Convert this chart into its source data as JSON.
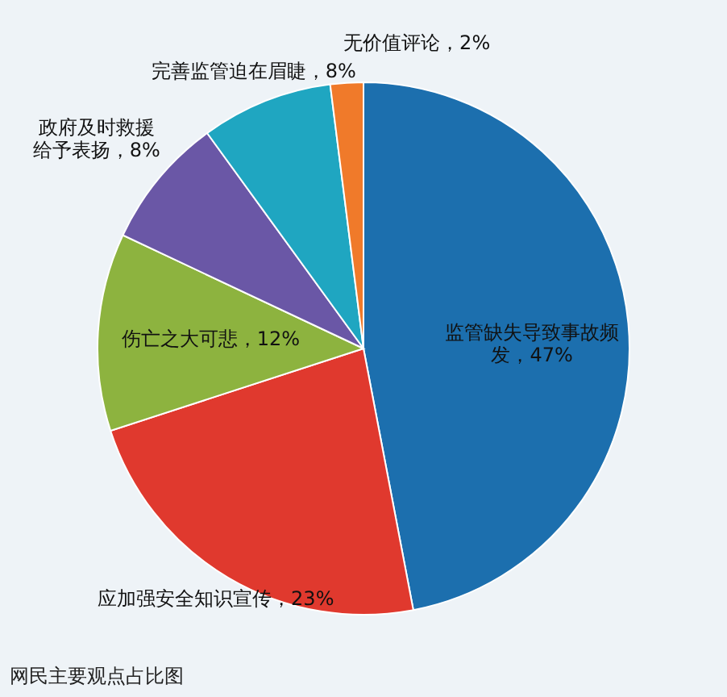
{
  "chart_data": {
    "type": "pie",
    "categories": [
      "监管缺失导致事故频发",
      "应加强安全知识宣传",
      "伤亡之大可悲",
      "政府及时救援给予表扬",
      "完善监管迫在眉睫",
      "无价值评论"
    ],
    "values": [
      47,
      23,
      12,
      8,
      8,
      2
    ],
    "colors": [
      "#1c6fae",
      "#e0392e",
      "#8db33f",
      "#6a57a6",
      "#1fa6c1",
      "#f07a2a"
    ],
    "value_labels": [
      "47%",
      "23%",
      "12%",
      "8%",
      "8%",
      "2%"
    ],
    "annotations": [
      "网民主要观点占比图"
    ]
  }
}
